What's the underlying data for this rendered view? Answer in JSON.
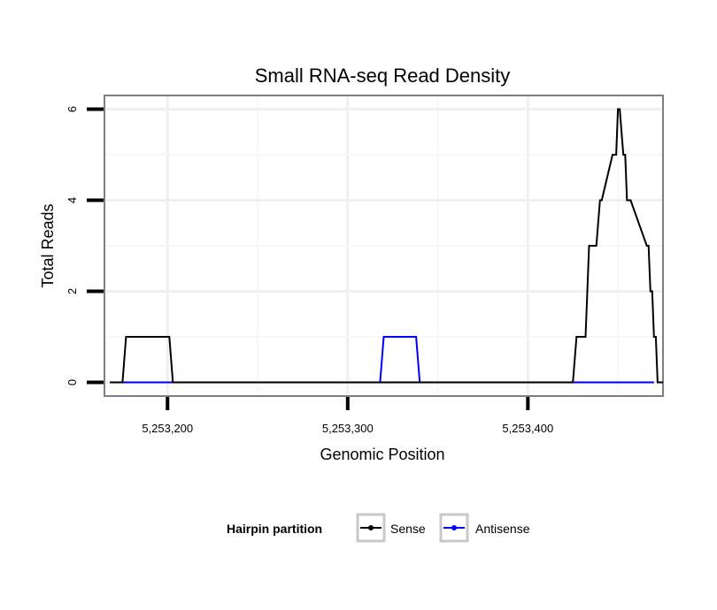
{
  "chart_data": {
    "type": "line",
    "title": "Small RNA-seq Read Density",
    "xlabel": "Genomic Position",
    "ylabel": "Total Reads",
    "xlim": [
      5253165,
      5253475
    ],
    "ylim": [
      -0.3,
      6.3
    ],
    "x_ticks": [
      {
        "value": 5253200,
        "label": "5,253,200"
      },
      {
        "value": 5253300,
        "label": "5,253,300"
      },
      {
        "value": 5253400,
        "label": "5,253,400"
      }
    ],
    "y_ticks": [
      {
        "value": 0,
        "label": "0"
      },
      {
        "value": 2,
        "label": "2"
      },
      {
        "value": 4,
        "label": "4"
      },
      {
        "value": 6,
        "label": "6"
      }
    ],
    "grid": true,
    "legend": {
      "title": "Hairpin partition",
      "position": "bottom"
    },
    "series": [
      {
        "name": "Sense",
        "color": "#000000",
        "x": [
          5253168,
          5253175,
          5253177,
          5253201,
          5253203,
          5253425,
          5253427,
          5253432,
          5253434,
          5253438,
          5253440,
          5253441,
          5253447,
          5253449,
          5253450,
          5253451,
          5253453,
          5253454,
          5253455,
          5253457,
          5253466,
          5253467,
          5253468,
          5253469,
          5253470,
          5253471,
          5253472,
          5253475
        ],
        "y": [
          0,
          0,
          1,
          1,
          0,
          0,
          1,
          1,
          3,
          3,
          4,
          4,
          5,
          5,
          6,
          6,
          5,
          5,
          4,
          4,
          3,
          3,
          2,
          2,
          1,
          1,
          0,
          0
        ]
      },
      {
        "name": "Antisense",
        "color": "#0000ff",
        "x": [
          5253174,
          5253318,
          5253320,
          5253338,
          5253340,
          5253470
        ],
        "y": [
          0,
          0,
          1,
          1,
          0,
          0
        ]
      }
    ]
  }
}
